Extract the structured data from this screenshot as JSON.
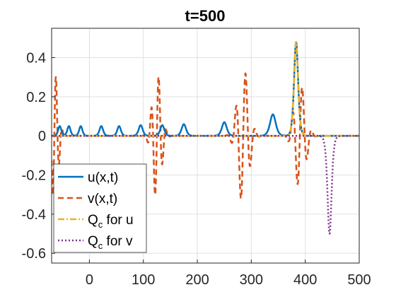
{
  "chart_data": {
    "type": "line",
    "title": "t=500",
    "xlabel": "",
    "ylabel": "",
    "xlim": [
      -70,
      500
    ],
    "ylim": [
      -0.65,
      0.55
    ],
    "x_ticks": [
      0,
      100,
      200,
      300,
      400,
      500
    ],
    "x_tick_labels": [
      "0",
      "100",
      "200",
      "300",
      "400",
      "500"
    ],
    "y_ticks": [
      -0.6,
      -0.4,
      -0.2,
      0,
      0.2,
      0.4
    ],
    "y_tick_labels": [
      "-0.6",
      "-0.4",
      "-0.2",
      "0",
      "0.2",
      "0.4"
    ],
    "grid": true,
    "legend_position": "bottom-left",
    "series": [
      {
        "name": "u(x,t)",
        "color": "#0072BD",
        "style": "solid",
        "pulses": [
          {
            "x": -55,
            "amp": 0.05,
            "width": 4
          },
          {
            "x": -38,
            "amp": 0.05,
            "width": 4
          },
          {
            "x": -16,
            "amp": 0.05,
            "width": 4
          },
          {
            "x": 22,
            "amp": 0.05,
            "width": 4.5
          },
          {
            "x": 55,
            "amp": 0.05,
            "width": 4.5
          },
          {
            "x": 95,
            "amp": 0.055,
            "width": 5
          },
          {
            "x": 135,
            "amp": 0.055,
            "width": 5
          },
          {
            "x": 175,
            "amp": 0.06,
            "width": 5.5
          },
          {
            "x": 250,
            "amp": 0.07,
            "width": 6
          },
          {
            "x": 340,
            "amp": 0.11,
            "width": 7
          },
          {
            "x": 383,
            "amp": 0.48,
            "width": 5
          }
        ]
      },
      {
        "name": "v(x,t)",
        "color": "#D95319",
        "style": "dashed",
        "wave_packets": [
          {
            "x": -65,
            "amp": 0.33,
            "width": 6,
            "wavelength": 12
          },
          {
            "x": 125,
            "amp": 0.33,
            "width": 7,
            "wavelength": 14
          },
          {
            "x": 285,
            "amp": 0.35,
            "width": 9,
            "wavelength": 18
          },
          {
            "x": 390,
            "amp": 0.27,
            "width": 9,
            "wavelength": 18
          }
        ]
      },
      {
        "name": "Q_c for u",
        "color": "#EDB120",
        "style": "dashdot",
        "pulses": [
          {
            "x": 383,
            "amp": 0.48,
            "width": 5
          }
        ]
      },
      {
        "name": "Q_c for v",
        "color": "#7E2F8E",
        "style": "dotted",
        "pulses": [
          {
            "x": 445,
            "amp": -0.5,
            "width": 5
          }
        ]
      }
    ]
  },
  "legend": [
    {
      "label": "u(x,t)",
      "color": "#0072BD",
      "style": "solid"
    },
    {
      "label": "v(x,t)",
      "color": "#D95319",
      "style": "dashed"
    },
    {
      "label_main": "Q",
      "label_sub": "c",
      "label_rest": " for u",
      "color": "#EDB120",
      "style": "dashdot"
    },
    {
      "label_main": "Q",
      "label_sub": "c",
      "label_rest": " for v",
      "color": "#7E2F8E",
      "style": "dotted"
    }
  ]
}
